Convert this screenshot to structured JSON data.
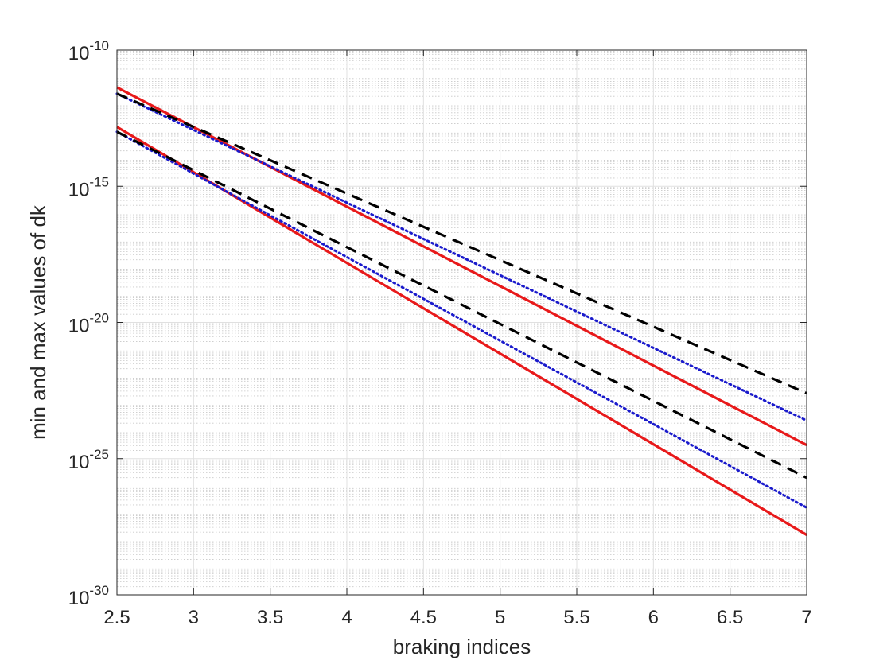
{
  "chart_data": {
    "type": "line",
    "title": "",
    "xlabel": "braking indices",
    "ylabel": "min and max values of dk",
    "xlim": [
      2.5,
      7
    ],
    "ylim_exponent": [
      -30,
      -10
    ],
    "yscale": "log",
    "grid": true,
    "minor_grid": true,
    "legend": "none",
    "x_ticks": [
      "2.5",
      "3",
      "3.5",
      "4",
      "4.5",
      "5",
      "5.5",
      "6",
      "6.5",
      "7"
    ],
    "y_ticks": [
      {
        "base": "10",
        "exp": "-30"
      },
      {
        "base": "10",
        "exp": "-25"
      },
      {
        "base": "10",
        "exp": "-20"
      },
      {
        "base": "10",
        "exp": "-15"
      },
      {
        "base": "10",
        "exp": "-10"
      }
    ],
    "x": [
      2.5,
      7
    ],
    "series": [
      {
        "style": "solid",
        "color": "#e8191a",
        "log10_values": [
          -11.37,
          -24.5
        ]
      },
      {
        "style": "dotted",
        "color": "#1a1acc",
        "log10_values": [
          -11.6,
          -23.6
        ]
      },
      {
        "style": "dashed",
        "color": "#000000",
        "log10_values": [
          -11.6,
          -22.6
        ]
      },
      {
        "style": "solid",
        "color": "#e8191a",
        "log10_values": [
          -12.82,
          -27.8
        ]
      },
      {
        "style": "dotted",
        "color": "#1a1acc",
        "log10_values": [
          -13.0,
          -26.8
        ]
      },
      {
        "style": "dashed",
        "color": "#000000",
        "log10_values": [
          -13.0,
          -25.7
        ]
      }
    ]
  }
}
